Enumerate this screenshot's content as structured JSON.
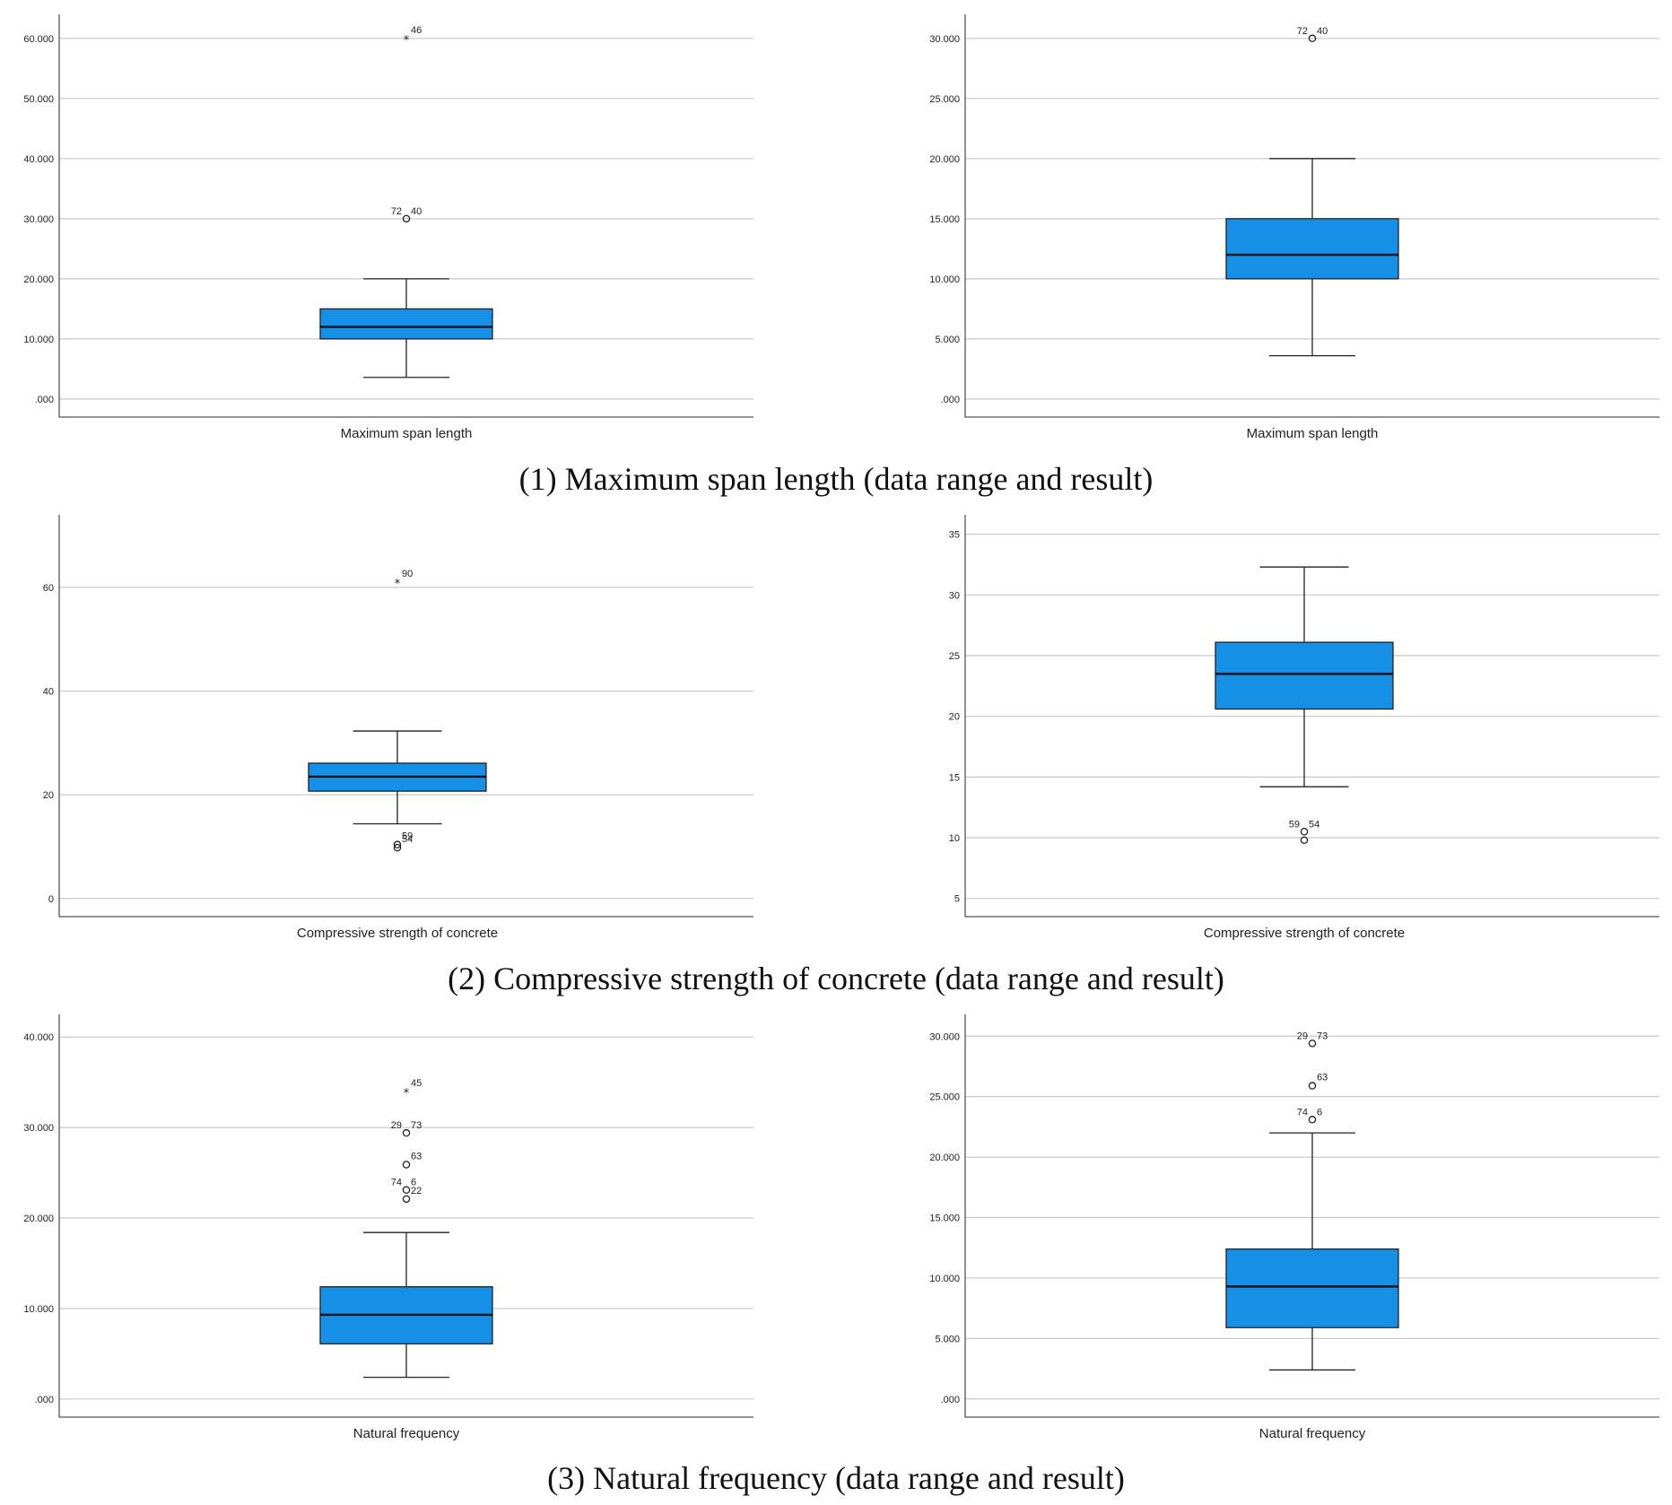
{
  "colors": {
    "box_fill": "#1590e6",
    "grid": "#c8c8c8",
    "axis": "#555555"
  },
  "captions": [
    "(1) Maximum span length (data range and result)",
    "(2) Compressive strength of concrete (data range and result)",
    "(3) Natural frequency (data range and result)"
  ],
  "chart_data": [
    {
      "type": "box",
      "xlabel": "Maximum span length",
      "ylim": [
        -3,
        64
      ],
      "yticks": [
        0,
        10,
        20,
        30,
        40,
        50,
        60
      ],
      "ytick_labels": [
        ".000",
        "10.000",
        "20.000",
        "30.000",
        "40.000",
        "50.000",
        "60.000"
      ],
      "whisker_low": 3.6,
      "q1": 10,
      "median": 12,
      "q3": 15,
      "whisker_high": 20,
      "outliers": [
        {
          "value": 60,
          "marker": "star",
          "labels": [
            "46"
          ]
        },
        {
          "value": 30,
          "marker": "circle",
          "labels": [
            "72",
            "40"
          ]
        }
      ]
    },
    {
      "type": "box",
      "xlabel": "Maximum span length",
      "ylim": [
        -1.5,
        32
      ],
      "yticks": [
        0,
        5,
        10,
        15,
        20,
        25,
        30
      ],
      "ytick_labels": [
        ".000",
        "5.000",
        "10.000",
        "15.000",
        "20.000",
        "25.000",
        "30.000"
      ],
      "whisker_low": 3.6,
      "q1": 10,
      "median": 12,
      "q3": 15,
      "whisker_high": 20,
      "outliers": [
        {
          "value": 30,
          "marker": "circle",
          "labels": [
            "72",
            "40"
          ]
        }
      ]
    },
    {
      "type": "box",
      "xlabel": "Compressive strength of concrete",
      "ylim": [
        -3.5,
        74
      ],
      "yticks": [
        0,
        20,
        40,
        60
      ],
      "ytick_labels": [
        "0",
        "20",
        "40",
        "60"
      ],
      "whisker_low": 14.4,
      "q1": 20.7,
      "median": 23.5,
      "q3": 26.1,
      "whisker_high": 32.3,
      "outliers": [
        {
          "value": 61,
          "marker": "star",
          "labels": [
            "90"
          ]
        },
        {
          "value": 10.4,
          "marker": "circle",
          "labels": [
            "59"
          ]
        },
        {
          "value": 9.8,
          "marker": "circle",
          "labels": [
            "54"
          ]
        }
      ]
    },
    {
      "type": "box",
      "xlabel": "Compressive strength of concrete",
      "ylim": [
        3.5,
        36.6
      ],
      "yticks": [
        5,
        10,
        15,
        20,
        25,
        30,
        35
      ],
      "ytick_labels": [
        "5",
        "10",
        "15",
        "20",
        "25",
        "30",
        "35"
      ],
      "whisker_low": 14.2,
      "q1": 20.6,
      "median": 23.5,
      "q3": 26.1,
      "whisker_high": 32.3,
      "outliers": [
        {
          "value": 10.5,
          "marker": "circle",
          "labels": [
            "59",
            "54"
          ]
        },
        {
          "value": 9.8,
          "marker": "circle",
          "labels": []
        }
      ]
    },
    {
      "type": "box",
      "xlabel": "Natural frequency",
      "ylim": [
        -2,
        42.5
      ],
      "yticks": [
        0,
        10,
        20,
        30,
        40
      ],
      "ytick_labels": [
        ".000",
        "10.000",
        "20.000",
        "30.000",
        "40.000"
      ],
      "whisker_low": 2.4,
      "q1": 6.1,
      "median": 9.3,
      "q3": 12.4,
      "whisker_high": 18.4,
      "outliers": [
        {
          "value": 34,
          "marker": "star",
          "labels": [
            "45"
          ]
        },
        {
          "value": 29.4,
          "marker": "circle",
          "labels": [
            "29",
            "73"
          ]
        },
        {
          "value": 25.9,
          "marker": "circle",
          "labels": [
            "63"
          ]
        },
        {
          "value": 23.1,
          "marker": "circle",
          "labels": [
            "74",
            "6"
          ]
        },
        {
          "value": 22.1,
          "marker": "circle",
          "labels": [
            "22"
          ]
        }
      ]
    },
    {
      "type": "box",
      "xlabel": "Natural frequency",
      "ylim": [
        -1.5,
        31.8
      ],
      "yticks": [
        0,
        5,
        10,
        15,
        20,
        25,
        30
      ],
      "ytick_labels": [
        ".000",
        "5.000",
        "10.000",
        "15.000",
        "20.000",
        "25.000",
        "30.000"
      ],
      "whisker_low": 2.4,
      "q1": 5.9,
      "median": 9.3,
      "q3": 12.4,
      "whisker_high": 22,
      "outliers": [
        {
          "value": 29.4,
          "marker": "circle",
          "labels": [
            "29",
            "73"
          ]
        },
        {
          "value": 25.9,
          "marker": "circle",
          "labels": [
            "63"
          ]
        },
        {
          "value": 23.1,
          "marker": "circle",
          "labels": [
            "74",
            "6"
          ]
        }
      ]
    }
  ]
}
